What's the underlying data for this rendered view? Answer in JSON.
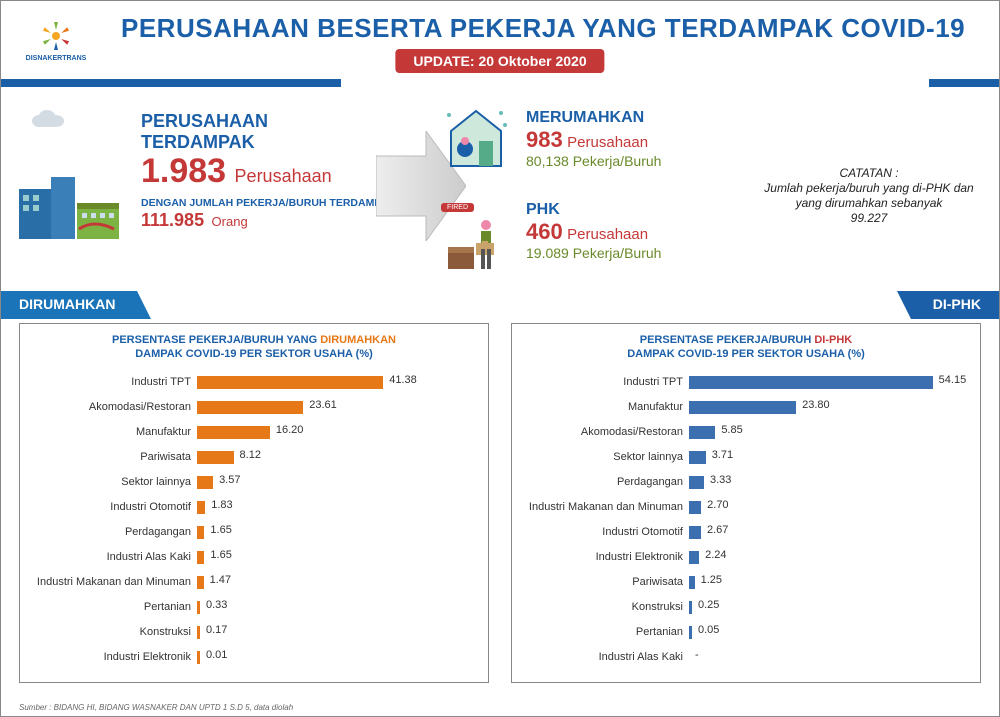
{
  "header": {
    "title": "PERUSAHAAN BESERTA PEKERJA YANG TERDAMPAK COVID-19",
    "title_color": "#1b5fa8",
    "logo_text": "DISNAKERTRANS",
    "update_label": "UPDATE: 20 Oktober 2020",
    "update_bg": "#c53838"
  },
  "affected": {
    "heading_line1": "PERUSAHAAN",
    "heading_line2": "TERDAMPAK",
    "value": "1.983",
    "value_label": "Perusahaan",
    "sub_heading": "DENGAN JUMLAH PEKERJA/BURUH TERDAMPAK",
    "sub_value": "111.985",
    "sub_value_label": "Orang"
  },
  "merumahkan": {
    "heading": "MERUMAHKAN",
    "value": "983",
    "value_label": "Perusahaan",
    "sub": "80,138 Pekerja/Buruh"
  },
  "phk": {
    "heading": "PHK",
    "value": "460",
    "value_label": "Perusahaan",
    "sub": "19.089 Pekerja/Buruh",
    "fired_badge": "FIRED"
  },
  "catatan": {
    "title": "CATATAN :",
    "body": "Jumlah pekerja/buruh yang di-PHK dan yang dirumahkan sebanyak",
    "value": "99.227"
  },
  "tabs": {
    "left": "DIRUMAHKAN",
    "right": "DI-PHK"
  },
  "chart_left": {
    "type": "horizontal-bar",
    "title_prefix": "PERSENTASE PEKERJA/BURUH YANG ",
    "title_accent": "DIRUMAHKAN",
    "title_suffix_line2": "DAMPAK COVID-19 PER SEKTOR USAHA (%)",
    "bar_color": "#e67817",
    "max": 60,
    "label_fontsize": 11,
    "value_fontsize": 11,
    "categories": [
      "Industri TPT",
      "Akomodasi/Restoran",
      "Manufaktur",
      "Pariwisata",
      "Sektor lainnya",
      "Industri Otomotif",
      "Perdagangan",
      "Industri Alas Kaki",
      "Industri Makanan dan Minuman",
      "Pertanian",
      "Konstruksi",
      "Industri Elektronik"
    ],
    "values": [
      41.38,
      23.61,
      16.2,
      8.12,
      3.57,
      1.83,
      1.65,
      1.65,
      1.47,
      0.33,
      0.17,
      0.01
    ],
    "labels": [
      "41.38",
      "23.61",
      "16.20",
      "8.12",
      "3.57",
      "1.83",
      "1.65",
      "1.65",
      "1.47",
      "0.33",
      "0.17",
      "0.01"
    ]
  },
  "chart_right": {
    "type": "horizontal-bar",
    "title_prefix": "PERSENTASE PEKERJA/BURUH ",
    "title_accent": "DI-PHK",
    "title_suffix_line2": "DAMPAK COVID-19 PER SEKTOR USAHA (%)",
    "bar_color": "#3b6fb0",
    "max": 60,
    "label_fontsize": 11,
    "value_fontsize": 11,
    "categories": [
      "Industri TPT",
      "Manufaktur",
      "Akomodasi/Restoran",
      "Sektor lainnya",
      "Perdagangan",
      "Industri Makanan dan Minuman",
      "Industri Otomotif",
      "Industri Elektronik",
      "Pariwisata",
      "Konstruksi",
      "Pertanian",
      "Industri Alas Kaki"
    ],
    "values": [
      54.15,
      23.8,
      5.85,
      3.71,
      3.33,
      2.7,
      2.67,
      2.24,
      1.25,
      0.25,
      0.05,
      0
    ],
    "labels": [
      "54.15",
      "23.80",
      "5.85",
      "3.71",
      "3.33",
      "2.70",
      "2.67",
      "2.24",
      "1.25",
      "0.25",
      "0.05",
      "-"
    ]
  },
  "source": "Sumber : BIDANG HI, BIDANG WASNAKER DAN UPTD 1 S.D 5, data diolah",
  "colors": {
    "blue": "#1b5fa8",
    "blue_tab": "#1b73b8",
    "red": "#c53838",
    "green": "#6a8a2a",
    "orange": "#e67817",
    "chart_blue": "#3b6fb0"
  }
}
